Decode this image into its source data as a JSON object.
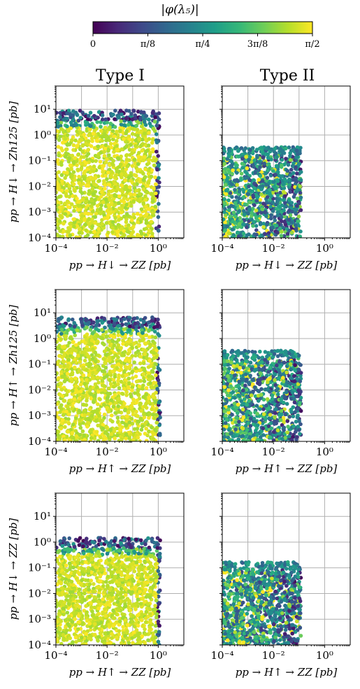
{
  "colorbar": {
    "label": "|φ(λ₅)|",
    "ticks": [
      "0",
      "π/8",
      "π/4",
      "3π/8",
      "π/2"
    ],
    "range": [
      0,
      1.5708
    ],
    "colormap": "viridis"
  },
  "columns": [
    "Type I",
    "Type II"
  ],
  "chart_data": [
    {
      "type": "scatter",
      "panel": "Type I, row 1",
      "xscale": "log",
      "yscale": "log",
      "xlabel": "pp → H↓ → ZZ [pb]",
      "ylabel": "pp → H↓ → Zh125 [pb]",
      "xlim": [
        0.0001,
        10
      ],
      "ylim": [
        0.0001,
        80
      ],
      "xticks": [
        "10⁻⁴",
        "10⁻²",
        "10⁰"
      ],
      "yticks": [
        "10⁻⁴",
        "10⁻³",
        "10⁻²",
        "10⁻¹",
        "10⁰",
        "10¹"
      ],
      "grid": true,
      "region": {
        "x_max": 1.1,
        "y_top": 8
      }
    },
    {
      "type": "scatter",
      "panel": "Type II, row 1",
      "xscale": "log",
      "yscale": "log",
      "xlabel": "pp → H↓ → ZZ [pb]",
      "ylabel": "",
      "xlim": [
        0.0001,
        10
      ],
      "ylim": [
        0.0001,
        80
      ],
      "xticks": [
        "10⁻⁴",
        "10⁻²",
        "10⁰"
      ],
      "grid": true,
      "region": {
        "x_max": 0.12,
        "y_top": 0.3
      }
    },
    {
      "type": "scatter",
      "panel": "Type I, row 2",
      "xscale": "log",
      "yscale": "log",
      "xlabel": "pp → H↑ → ZZ [pb]",
      "ylabel": "pp → H↑ → Zh125 [pb]",
      "xlim": [
        0.0001,
        10
      ],
      "ylim": [
        0.0001,
        80
      ],
      "xticks": [
        "10⁻⁴",
        "10⁻²",
        "10⁰"
      ],
      "yticks": [
        "10⁻⁴",
        "10⁻³",
        "10⁻²",
        "10⁻¹",
        "10⁰",
        "10¹"
      ],
      "grid": true,
      "region": {
        "x_max": 1.2,
        "y_top": 6
      }
    },
    {
      "type": "scatter",
      "panel": "Type II, row 2",
      "xscale": "log",
      "yscale": "log",
      "xlabel": "pp → H↑ → ZZ [pb]",
      "ylabel": "",
      "xlim": [
        0.0001,
        10
      ],
      "ylim": [
        0.0001,
        80
      ],
      "xticks": [
        "10⁻⁴",
        "10⁻²",
        "10⁰"
      ],
      "grid": true,
      "region": {
        "x_max": 0.12,
        "y_top": 0.3
      }
    },
    {
      "type": "scatter",
      "panel": "Type I, row 3",
      "xscale": "log",
      "yscale": "log",
      "xlabel": "pp → H↑ → ZZ [pb]",
      "ylabel": "pp → H↓ → ZZ [pb]",
      "xlim": [
        0.0001,
        10
      ],
      "ylim": [
        0.0001,
        80
      ],
      "xticks": [
        "10⁻⁴",
        "10⁻²",
        "10⁰"
      ],
      "yticks": [
        "10⁻⁴",
        "10⁻³",
        "10⁻²",
        "10⁻¹",
        "10⁰",
        "10¹"
      ],
      "grid": true,
      "region": {
        "x_max": 1.2,
        "y_top": 1.3
      }
    },
    {
      "type": "scatter",
      "panel": "Type II, row 3",
      "xscale": "log",
      "yscale": "log",
      "xlabel": "pp → H↑ → ZZ [pb]",
      "ylabel": "",
      "xlim": [
        0.0001,
        10
      ],
      "ylim": [
        0.0001,
        80
      ],
      "xticks": [
        "10⁻⁴",
        "10⁻²",
        "10⁰"
      ],
      "grid": true,
      "region": {
        "x_max": 0.12,
        "y_top": 0.15
      }
    }
  ]
}
